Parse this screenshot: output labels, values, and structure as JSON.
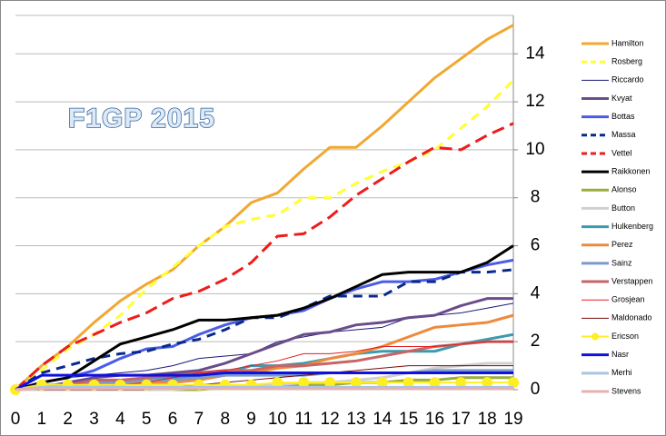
{
  "chart_data": {
    "type": "line",
    "title": "F1GP 2015",
    "x": [
      0,
      1,
      2,
      3,
      4,
      5,
      6,
      7,
      8,
      9,
      10,
      11,
      12,
      13,
      14,
      15,
      16,
      17,
      18,
      19
    ],
    "xlim": [
      0,
      19
    ],
    "xticks": [
      0,
      1,
      2,
      3,
      4,
      5,
      6,
      7,
      8,
      9,
      10,
      11,
      12,
      13,
      14,
      15,
      16,
      17,
      18,
      19
    ],
    "ylim": [
      0,
      15.6
    ],
    "yticks": [
      0,
      2,
      4,
      6,
      8,
      10,
      12,
      14
    ],
    "grid": true,
    "series": [
      {
        "name": "Hamilton",
        "color": "#f0a830",
        "width": 3,
        "values": [
          0,
          1.0,
          1.8,
          2.8,
          3.7,
          4.4,
          5.0,
          6.0,
          6.8,
          7.8,
          8.2,
          9.2,
          10.1,
          10.1,
          11.0,
          12.0,
          13.0,
          13.8,
          14.6,
          15.2
        ]
      },
      {
        "name": "Rosberg",
        "color": "#ffff33",
        "width": 3,
        "dash": "10,7",
        "values": [
          0,
          0.8,
          1.7,
          2.3,
          3.1,
          4.2,
          5.1,
          6.0,
          6.8,
          7.1,
          7.3,
          8.0,
          8.0,
          8.6,
          9.1,
          9.5,
          10.0,
          10.9,
          11.8,
          12.9
        ]
      },
      {
        "name": "Riccardo",
        "color": "#1a1a7a",
        "width": 1,
        "values": [
          0,
          0.3,
          0.5,
          0.6,
          0.7,
          0.8,
          1.0,
          1.3,
          1.4,
          1.5,
          2.0,
          2.2,
          2.4,
          2.5,
          2.6,
          3.0,
          3.1,
          3.2,
          3.4,
          3.6
        ]
      },
      {
        "name": "Kvyat",
        "color": "#6b4c8a",
        "width": 3,
        "values": [
          0,
          0.1,
          0.3,
          0.5,
          0.6,
          0.6,
          0.7,
          0.8,
          1.1,
          1.5,
          1.9,
          2.3,
          2.4,
          2.7,
          2.8,
          3.0,
          3.1,
          3.5,
          3.8,
          3.8
        ]
      },
      {
        "name": "Bottas",
        "color": "#4a5ce6",
        "width": 3,
        "values": [
          0,
          0.3,
          0.5,
          0.8,
          1.3,
          1.7,
          1.8,
          2.3,
          2.7,
          3.0,
          3.1,
          3.3,
          3.8,
          4.2,
          4.5,
          4.5,
          4.6,
          4.9,
          5.2,
          5.4
        ]
      },
      {
        "name": "Massa",
        "color": "#0a2a8a",
        "width": 3,
        "dash": "10,7",
        "values": [
          0,
          0.7,
          1.0,
          1.3,
          1.5,
          1.6,
          1.9,
          2.1,
          2.5,
          3.0,
          3.0,
          3.4,
          3.9,
          3.9,
          3.9,
          4.5,
          4.5,
          4.9,
          4.9,
          5.0
        ]
      },
      {
        "name": "Vettel",
        "color": "#ee1c1c",
        "width": 3,
        "dash": "14,7",
        "values": [
          0,
          1.0,
          1.8,
          2.3,
          2.8,
          3.2,
          3.8,
          4.1,
          4.6,
          5.3,
          6.4,
          6.5,
          7.2,
          8.1,
          8.8,
          9.5,
          10.1,
          10.0,
          10.6,
          11.1
        ]
      },
      {
        "name": "Raikkonen",
        "color": "#000000",
        "width": 3,
        "values": [
          0,
          0.3,
          0.5,
          1.2,
          1.9,
          2.2,
          2.5,
          2.9,
          2.9,
          3.0,
          3.1,
          3.4,
          3.8,
          4.3,
          4.8,
          4.9,
          4.9,
          4.9,
          5.3,
          6.0
        ]
      },
      {
        "name": "Alonso",
        "color": "#9aae3a",
        "width": 3,
        "values": [
          0,
          0,
          0,
          0,
          0,
          0,
          0,
          0,
          0.1,
          0.1,
          0.1,
          0.2,
          0.2,
          0.3,
          0.3,
          0.4,
          0.4,
          0.5,
          0.5,
          0.5
        ]
      },
      {
        "name": "Button",
        "color": "#d0d0d0",
        "width": 3,
        "values": [
          0,
          0,
          0,
          0,
          0,
          0,
          0,
          0.1,
          0.1,
          0.2,
          0.2,
          0.3,
          0.3,
          0.4,
          0.5,
          0.7,
          0.9,
          1.0,
          1.1,
          1.1
        ]
      },
      {
        "name": "Hulkenberg",
        "color": "#3a9ab0",
        "width": 3,
        "values": [
          0,
          0.1,
          0.2,
          0.3,
          0.3,
          0.4,
          0.5,
          0.5,
          0.7,
          1.0,
          1.0,
          1.1,
          1.3,
          1.5,
          1.6,
          1.6,
          1.6,
          1.9,
          2.1,
          2.3
        ]
      },
      {
        "name": "Perez",
        "color": "#ee8a3a",
        "width": 3,
        "values": [
          0,
          0.1,
          0.1,
          0.2,
          0.2,
          0.3,
          0.3,
          0.4,
          0.6,
          0.7,
          0.9,
          1.0,
          1.3,
          1.5,
          1.8,
          2.2,
          2.6,
          2.7,
          2.8,
          3.1
        ]
      },
      {
        "name": "Sainz",
        "color": "#7a9acd",
        "width": 3,
        "values": [
          0,
          0.2,
          0.2,
          0.3,
          0.3,
          0.4,
          0.4,
          0.5,
          0.6,
          0.6,
          0.6,
          0.6,
          0.7,
          0.7,
          0.7,
          0.7,
          0.8,
          0.8,
          0.8,
          0.8
        ]
      },
      {
        "name": "Verstappen",
        "color": "#c86464",
        "width": 3,
        "values": [
          0,
          0.1,
          0.2,
          0.4,
          0.4,
          0.5,
          0.6,
          0.7,
          0.8,
          0.8,
          1.0,
          1.0,
          1.1,
          1.2,
          1.4,
          1.6,
          1.8,
          1.9,
          2.0,
          2.0
        ]
      },
      {
        "name": "Grosjean",
        "color": "#e02020",
        "width": 1,
        "values": [
          0,
          0,
          0,
          0,
          0.2,
          0.3,
          0.5,
          0.7,
          0.8,
          1.0,
          1.2,
          1.5,
          1.5,
          1.6,
          1.8,
          1.8,
          1.8,
          1.9,
          2.0,
          2.0
        ]
      },
      {
        "name": "Maldonado",
        "color": "#7a0a0a",
        "width": 1,
        "values": [
          0,
          0,
          0,
          0,
          0,
          0,
          0.1,
          0.2,
          0.3,
          0.4,
          0.5,
          0.6,
          0.7,
          0.8,
          0.9,
          1.0,
          1.0,
          1.0,
          1.0,
          1.0
        ]
      },
      {
        "name": "Ericson",
        "color": "#ffee22",
        "width": 2,
        "marker": "circle",
        "values": [
          0,
          0.2,
          0.2,
          0.2,
          0.2,
          0.2,
          0.2,
          0.2,
          0.2,
          0.2,
          0.3,
          0.3,
          0.3,
          0.3,
          0.3,
          0.3,
          0.3,
          0.3,
          0.3,
          0.3
        ]
      },
      {
        "name": "Nasr",
        "color": "#1010dd",
        "width": 3,
        "values": [
          0,
          0.6,
          0.6,
          0.6,
          0.6,
          0.6,
          0.6,
          0.6,
          0.7,
          0.7,
          0.7,
          0.7,
          0.7,
          0.7,
          0.7,
          0.7,
          0.7,
          0.7,
          0.7,
          0.7
        ]
      },
      {
        "name": "Merhi",
        "color": "#a8c4e0",
        "width": 3,
        "values": [
          0,
          0.1,
          0.1,
          0.1,
          0.1,
          0.1,
          0.1,
          0.1,
          0.1,
          0.1,
          0.1,
          0.1,
          0.1,
          0.1,
          0.1,
          0.1,
          0.1,
          0.1,
          0.1,
          0.1
        ]
      },
      {
        "name": "Stevens",
        "color": "#e8b0b0",
        "width": 3,
        "values": [
          0,
          0.05,
          0.05,
          0.05,
          0.05,
          0.05,
          0.05,
          0.05,
          0.05,
          0.05,
          0.05,
          0.05,
          0.05,
          0.05,
          0.05,
          0.05,
          0.05,
          0.05,
          0.05,
          0.05
        ]
      }
    ]
  }
}
